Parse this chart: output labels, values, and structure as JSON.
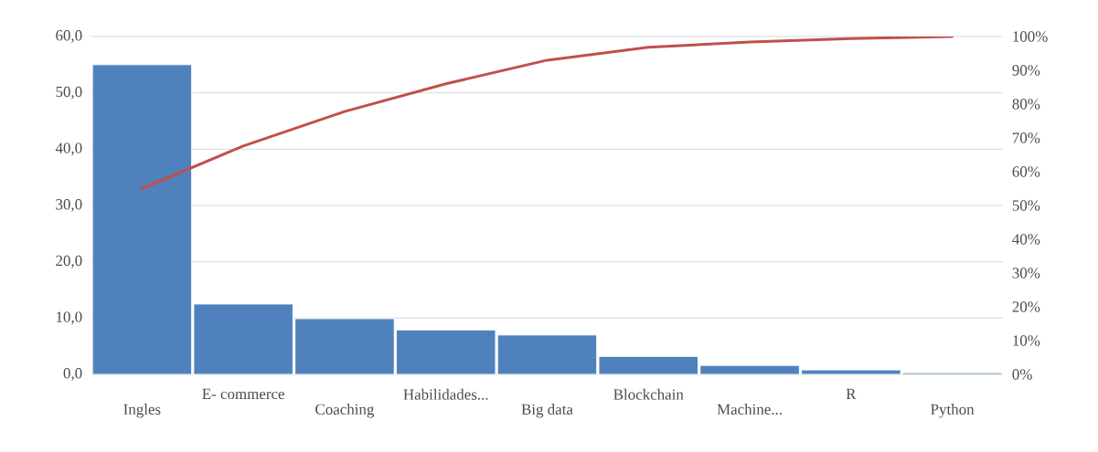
{
  "chart_data": {
    "type": "bar",
    "categories": [
      "Ingles",
      "E- commerce",
      "Coaching",
      "Habilidades...",
      "Big data",
      "Blockchain",
      "Machine...",
      "R",
      "Python"
    ],
    "series": [
      {
        "color": "#4f81bd",
        "values": [
          55.0,
          12.5,
          9.9,
          7.9,
          7.0,
          3.2,
          1.6,
          0.8,
          0.3
        ]
      },
      {
        "type": "line",
        "axis": "y2",
        "color": "#c0504d",
        "values": [
          55.0,
          67.6,
          77.8,
          86.0,
          93.0,
          96.8,
          98.4,
          99.4,
          100
        ]
      }
    ],
    "ylim": [
      0,
      60
    ],
    "yticks": [
      {
        "value": 0,
        "label": "0,0"
      },
      {
        "value": 10,
        "label": "10,0"
      },
      {
        "value": 20,
        "label": "20,0"
      },
      {
        "value": 30,
        "label": "30,0"
      },
      {
        "value": 40,
        "label": "40,0"
      },
      {
        "value": 50,
        "label": "50,0"
      },
      {
        "value": 60,
        "label": "60,0"
      }
    ],
    "y2lim": [
      0,
      100
    ],
    "y2ticks": [
      {
        "value": 0,
        "label": "0%"
      },
      {
        "value": 10,
        "label": "10%"
      },
      {
        "value": 20,
        "label": "20%"
      },
      {
        "value": 30,
        "label": "30%"
      },
      {
        "value": 40,
        "label": "40%"
      },
      {
        "value": 50,
        "label": "50%"
      },
      {
        "value": 60,
        "label": "60%"
      },
      {
        "value": 70,
        "label": "70%"
      },
      {
        "value": 80,
        "label": "80%"
      },
      {
        "value": 90,
        "label": "90%"
      },
      {
        "value": 100,
        "label": "100%"
      }
    ],
    "grid": "y"
  }
}
